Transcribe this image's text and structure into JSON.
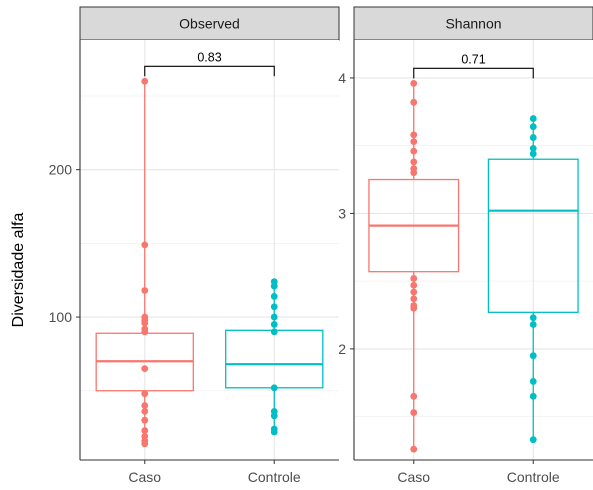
{
  "chart_data": {
    "type": "boxplot",
    "ylabel": "Diversidade alfa",
    "categories": [
      "Caso",
      "Controle"
    ],
    "colors": {
      "Caso": "#F8766D",
      "Controle": "#00BFC4"
    },
    "grid": true,
    "panels": [
      {
        "title": "Observed",
        "ylim": [
          3,
          288
        ],
        "yticks": [
          100,
          200
        ],
        "ytick_labels": [
          "100",
          "200"
        ],
        "pvalue": "0.83",
        "groups": [
          {
            "name": "Caso",
            "median": 70,
            "q1": 50,
            "q3": 89,
            "whisker_low": 14,
            "whisker_high": 260,
            "points": [
              260,
              149,
              118,
              100,
              98,
              96,
              92,
              90,
              65,
              48,
              40,
              36,
              30,
              23,
              19,
              16,
              14
            ]
          },
          {
            "name": "Controle",
            "median": 68,
            "q1": 52,
            "q3": 91,
            "whisker_low": 22,
            "whisker_high": 124,
            "points": [
              124,
              121,
              114,
              107,
              100,
              95,
              90,
              52,
              36,
              33,
              24,
              22
            ]
          }
        ]
      },
      {
        "title": "Shannon",
        "ylim": [
          1.18,
          4.28
        ],
        "yticks": [
          2,
          3,
          4
        ],
        "ytick_labels": [
          "2",
          "3",
          "4"
        ],
        "pvalue": "0.71",
        "groups": [
          {
            "name": "Caso",
            "median": 2.91,
            "q1": 2.57,
            "q3": 3.25,
            "whisker_low": 1.26,
            "whisker_high": 3.96,
            "points": [
              3.96,
              3.82,
              3.58,
              3.53,
              3.46,
              3.38,
              3.33,
              3.3,
              2.52,
              2.47,
              2.42,
              2.37,
              2.32,
              2.3,
              1.65,
              1.53,
              1.26
            ]
          },
          {
            "name": "Controle",
            "median": 3.02,
            "q1": 2.27,
            "q3": 3.4,
            "whisker_low": 1.33,
            "whisker_high": 3.7,
            "points": [
              3.7,
              3.64,
              3.56,
              3.48,
              3.44,
              2.23,
              2.18,
              1.95,
              1.76,
              1.65,
              1.33
            ]
          }
        ]
      }
    ]
  }
}
